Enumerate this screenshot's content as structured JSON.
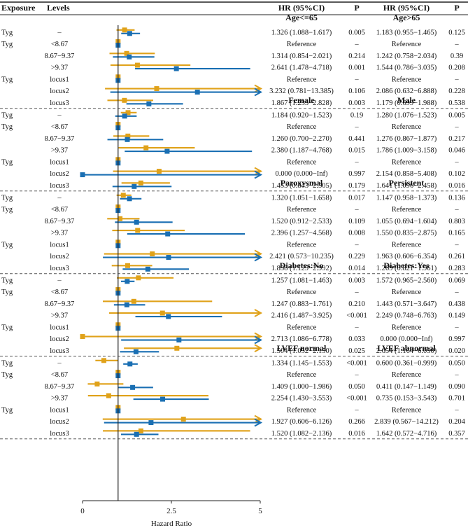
{
  "chart_data": {
    "type": "forest",
    "headers": {
      "exposure": "Exposure",
      "levels": "Levels",
      "hr1": "HR (95%CI)",
      "p1": "P",
      "hr2": "HR (95%CI)",
      "p2": "P"
    },
    "axis": {
      "label": "Hazard Ratio",
      "ticks": [
        0,
        2.5,
        5
      ],
      "tick_labels": [
        "0",
        "2.5",
        "5"
      ],
      "range": [
        0,
        5
      ],
      "reference_line": 1
    },
    "colors": {
      "series1": "#1a6fb3",
      "series2": "#e0a21a",
      "line": "#222222"
    },
    "groups": [
      {
        "subgroup1": "Age<=65",
        "subgroup2": "Age>65",
        "rows": [
          {
            "exposure": "Tyg",
            "level": "–",
            "hr1": "1.326 (1.088−1.617)",
            "p1": "0.005",
            "hr2": "1.183 (0.955−1.465)",
            "p2": "0.125",
            "s1": {
              "est": 1.326,
              "lo": 1.088,
              "hi": 1.617
            },
            "s2": {
              "est": 1.183,
              "lo": 0.955,
              "hi": 1.465
            }
          },
          {
            "exposure": "Tyg",
            "level": "<8.67",
            "hr1": "Reference",
            "p1": "–",
            "hr2": "Reference",
            "p2": "–",
            "s1": {
              "est": 1,
              "lo": 1,
              "hi": 1
            },
            "s2": {
              "est": 1,
              "lo": 1,
              "hi": 1
            }
          },
          {
            "exposure": "",
            "level": "8.67−9.37",
            "hr1": "1.314 (0.854−2.021)",
            "p1": "0.214",
            "hr2": "1.242 (0.758−2.034)",
            "p2": "0.39",
            "s1": {
              "est": 1.314,
              "lo": 0.854,
              "hi": 2.021
            },
            "s2": {
              "est": 1.242,
              "lo": 0.758,
              "hi": 2.034
            }
          },
          {
            "exposure": "",
            "level": ">9.37",
            "hr1": "2.641 (1.478−4.718)",
            "p1": "0.001",
            "hr2": "1.544 (0.786−3.035)",
            "p2": "0.208",
            "s1": {
              "est": 2.641,
              "lo": 1.478,
              "hi": 4.718
            },
            "s2": {
              "est": 1.544,
              "lo": 0.786,
              "hi": 3.035
            }
          },
          {
            "exposure": "Tyg",
            "level": "locus1",
            "hr1": "Reference",
            "p1": "–",
            "hr2": "Reference",
            "p2": "–",
            "s1": {
              "est": 1,
              "lo": 1,
              "hi": 1
            },
            "s2": {
              "est": 1,
              "lo": 1,
              "hi": 1
            }
          },
          {
            "exposure": "",
            "level": "locus2",
            "hr1": "3.232 (0.781−13.385)",
            "p1": "0.106",
            "hr2": "2.086 (0.632−6.888)",
            "p2": "0.228",
            "s1": {
              "est": 3.232,
              "lo": 0.781,
              "hi": 13.385
            },
            "s2": {
              "est": 2.086,
              "lo": 0.632,
              "hi": 6.888
            }
          },
          {
            "exposure": "",
            "level": "locus3",
            "hr1": "1.867 (1.233−2.828)",
            "p1": "0.003",
            "hr2": "1.179 (0.699−1.988)",
            "p2": "0.538",
            "s1": {
              "est": 1.867,
              "lo": 1.233,
              "hi": 2.828
            },
            "s2": {
              "est": 1.179,
              "lo": 0.699,
              "hi": 1.988
            }
          }
        ]
      },
      {
        "subgroup1": "Female",
        "subgroup2": "Male",
        "rows": [
          {
            "exposure": "Tyg",
            "level": "–",
            "hr1": "1.184 (0.920−1.523)",
            "p1": "0.19",
            "hr2": "1.280 (1.076−1.523)",
            "p2": "0.005",
            "s1": {
              "est": 1.184,
              "lo": 0.92,
              "hi": 1.523
            },
            "s2": {
              "est": 1.28,
              "lo": 1.076,
              "hi": 1.523
            }
          },
          {
            "exposure": "Tyg",
            "level": "<8.67",
            "hr1": "Reference",
            "p1": "–",
            "hr2": "Reference",
            "p2": "–",
            "s1": {
              "est": 1,
              "lo": 1,
              "hi": 1
            },
            "s2": {
              "est": 1,
              "lo": 1,
              "hi": 1
            }
          },
          {
            "exposure": "",
            "level": "8.67−9.37",
            "hr1": "1.260 (0.700−2.270)",
            "p1": "0.441",
            "hr2": "1.276 (0.867−1.877)",
            "p2": "0.217",
            "s1": {
              "est": 1.26,
              "lo": 0.7,
              "hi": 2.27
            },
            "s2": {
              "est": 1.276,
              "lo": 0.867,
              "hi": 1.877
            }
          },
          {
            "exposure": "",
            "level": ">9.37",
            "hr1": "2.380 (1.187−4.768)",
            "p1": "0.015",
            "hr2": "1.786 (1.009−3.158)",
            "p2": "0.046",
            "s1": {
              "est": 2.38,
              "lo": 1.187,
              "hi": 4.768
            },
            "s2": {
              "est": 1.786,
              "lo": 1.009,
              "hi": 3.158
            }
          },
          {
            "exposure": "Tyg",
            "level": "locus1",
            "hr1": "Reference",
            "p1": "–",
            "hr2": "Reference",
            "p2": "–",
            "s1": {
              "est": 1,
              "lo": 1,
              "hi": 1
            },
            "s2": {
              "est": 1,
              "lo": 1,
              "hi": 1
            }
          },
          {
            "exposure": "",
            "level": "locus2",
            "hr1": "0.000 (0.000−Inf)",
            "p1": "0.997",
            "hr2": "2.154 (0.858−5.408)",
            "p2": "0.102",
            "s1": {
              "est": 0,
              "lo": 0,
              "hi": null
            },
            "s2": {
              "est": 2.154,
              "lo": 0.858,
              "hi": 5.408
            }
          },
          {
            "exposure": "",
            "level": "locus3",
            "hr1": "1.453 (0.843−2.505)",
            "p1": "0.179",
            "hr2": "1.641 (1.096−2.458)",
            "p2": "0.016",
            "s1": {
              "est": 1.453,
              "lo": 0.843,
              "hi": 2.505
            },
            "s2": {
              "est": 1.641,
              "lo": 1.096,
              "hi": 2.458
            }
          }
        ]
      },
      {
        "subgroup1": "Paroxysmal",
        "subgroup2": "Persistent",
        "rows": [
          {
            "exposure": "Tyg",
            "level": "–",
            "hr1": "1.320 (1.051−1.658)",
            "p1": "0.017",
            "hr2": "1.147 (0.958−1.373)",
            "p2": "0.136",
            "s1": {
              "est": 1.32,
              "lo": 1.051,
              "hi": 1.658
            },
            "s2": {
              "est": 1.147,
              "lo": 0.958,
              "hi": 1.373
            }
          },
          {
            "exposure": "Tyg",
            "level": "<8.67",
            "hr1": "Reference",
            "p1": "–",
            "hr2": "Reference",
            "p2": "–",
            "s1": {
              "est": 1,
              "lo": 1,
              "hi": 1
            },
            "s2": {
              "est": 1,
              "lo": 1,
              "hi": 1
            }
          },
          {
            "exposure": "",
            "level": "8.67−9.37",
            "hr1": "1.520 (0.912−2.533)",
            "p1": "0.109",
            "hr2": "1.055 (0.694−1.604)",
            "p2": "0.803",
            "s1": {
              "est": 1.52,
              "lo": 0.912,
              "hi": 2.533
            },
            "s2": {
              "est": 1.055,
              "lo": 0.694,
              "hi": 1.604
            }
          },
          {
            "exposure": "",
            "level": ">9.37",
            "hr1": "2.396 (1.257−4.568)",
            "p1": "0.008",
            "hr2": "1.550 (0.835−2.875)",
            "p2": "0.165",
            "s1": {
              "est": 2.396,
              "lo": 1.257,
              "hi": 4.568
            },
            "s2": {
              "est": 1.55,
              "lo": 0.835,
              "hi": 2.875
            }
          },
          {
            "exposure": "Tyg",
            "level": "locus1",
            "hr1": "Reference",
            "p1": "–",
            "hr2": "Reference",
            "p2": "–",
            "s1": {
              "est": 1,
              "lo": 1,
              "hi": 1
            },
            "s2": {
              "est": 1,
              "lo": 1,
              "hi": 1
            }
          },
          {
            "exposure": "",
            "level": "locus2",
            "hr1": "2.421 (0.573−10.235)",
            "p1": "0.229",
            "hr2": "1.963 (0.606−6.354)",
            "p2": "0.261",
            "s1": {
              "est": 2.421,
              "lo": 0.573,
              "hi": 10.235
            },
            "s2": {
              "est": 1.963,
              "lo": 0.606,
              "hi": 6.354
            }
          },
          {
            "exposure": "",
            "level": "locus3",
            "hr1": "1.838 (1.129−2.992)",
            "p1": "0.014",
            "hr2": "1.269 (0.821−1.961)",
            "p2": "0.283",
            "s1": {
              "est": 1.838,
              "lo": 1.129,
              "hi": 2.992
            },
            "s2": {
              "est": 1.269,
              "lo": 0.821,
              "hi": 1.961
            }
          }
        ]
      },
      {
        "subgroup1": "Diabetes:No",
        "subgroup2": "Diabetes:Yes",
        "rows": [
          {
            "exposure": "Tyg",
            "level": "–",
            "hr1": "1.257 (1.081−1.463)",
            "p1": "0.003",
            "hr2": "1.572 (0.965−2.560)",
            "p2": "0.069",
            "s1": {
              "est": 1.257,
              "lo": 1.081,
              "hi": 1.463
            },
            "s2": {
              "est": 1.572,
              "lo": 0.965,
              "hi": 2.56
            }
          },
          {
            "exposure": "Tyg",
            "level": "<8.67",
            "hr1": "Reference",
            "p1": "–",
            "hr2": "Reference",
            "p2": "–",
            "s1": {
              "est": 1,
              "lo": 1,
              "hi": 1
            },
            "s2": {
              "est": 1,
              "lo": 1,
              "hi": 1
            }
          },
          {
            "exposure": "",
            "level": "8.67−9.37",
            "hr1": "1.247 (0.883−1.761)",
            "p1": "0.210",
            "hr2": "1.443 (0.571−3.647)",
            "p2": "0.438",
            "s1": {
              "est": 1.247,
              "lo": 0.883,
              "hi": 1.761
            },
            "s2": {
              "est": 1.443,
              "lo": 0.571,
              "hi": 3.647
            }
          },
          {
            "exposure": "",
            "level": ">9.37",
            "hr1": "2.416 (1.487−3.925)",
            "p1": "<0.001",
            "hr2": "2.249 (0.748−6.763)",
            "p2": "0.149",
            "s1": {
              "est": 2.416,
              "lo": 1.487,
              "hi": 3.925
            },
            "s2": {
              "est": 2.249,
              "lo": 0.748,
              "hi": 6.763
            }
          },
          {
            "exposure": "Tyg",
            "level": "locus1",
            "hr1": "Reference",
            "p1": "–",
            "hr2": "Reference",
            "p2": "–",
            "s1": {
              "est": 1,
              "lo": 1,
              "hi": 1
            },
            "s2": {
              "est": 1,
              "lo": 1,
              "hi": 1
            }
          },
          {
            "exposure": "",
            "level": "locus2",
            "hr1": "2.713 (1.086−6.778)",
            "p1": "0.033",
            "hr2": "0.000 (0.000−Inf)",
            "p2": "0.997",
            "s1": {
              "est": 2.713,
              "lo": 1.086,
              "hi": 6.778
            },
            "s2": {
              "est": 0,
              "lo": 0,
              "hi": null
            }
          },
          {
            "exposure": "",
            "level": "locus3",
            "hr1": "1.504 (1.052−2.150)",
            "p1": "0.025",
            "hr2": "2.654 (1.164−6.050)",
            "p2": "0.020",
            "s1": {
              "est": 1.504,
              "lo": 1.052,
              "hi": 2.15
            },
            "s2": {
              "est": 2.654,
              "lo": 1.164,
              "hi": 6.05
            }
          }
        ]
      },
      {
        "subgroup1": "LVEF normal",
        "subgroup2": "LVEF abnormal",
        "rows": [
          {
            "exposure": "Tyg",
            "level": "–",
            "hr1": "1.334 (1.145−1.553)",
            "p1": "<0.001",
            "hr2": "0.600 (0.361−0.999)",
            "p2": "0.050",
            "s1": {
              "est": 1.334,
              "lo": 1.145,
              "hi": 1.553
            },
            "s2": {
              "est": 0.6,
              "lo": 0.361,
              "hi": 0.999
            }
          },
          {
            "exposure": "Tyg",
            "level": "<8.67",
            "hr1": "Reference",
            "p1": "–",
            "hr2": "Reference",
            "p2": "–",
            "s1": {
              "est": 1,
              "lo": 1,
              "hi": 1
            },
            "s2": {
              "est": 1,
              "lo": 1,
              "hi": 1
            }
          },
          {
            "exposure": "",
            "level": "8.67−9.37",
            "hr1": "1.409 (1.000−1.986)",
            "p1": "0.050",
            "hr2": "0.411 (0.147−1.149)",
            "p2": "0.090",
            "s1": {
              "est": 1.409,
              "lo": 1.0,
              "hi": 1.986
            },
            "s2": {
              "est": 0.411,
              "lo": 0.147,
              "hi": 1.149
            }
          },
          {
            "exposure": "",
            "level": ">9.37",
            "hr1": "2.254 (1.430−3.553)",
            "p1": "<0.001",
            "hr2": "0.735 (0.153−3.543)",
            "p2": "0.701",
            "s1": {
              "est": 2.254,
              "lo": 1.43,
              "hi": 3.553
            },
            "s2": {
              "est": 0.735,
              "lo": 0.153,
              "hi": 3.543
            }
          },
          {
            "exposure": "Tyg",
            "level": "locus1",
            "hr1": "Reference",
            "p1": "–",
            "hr2": "Reference",
            "p2": "–",
            "s1": {
              "est": 1,
              "lo": 1,
              "hi": 1
            },
            "s2": {
              "est": 1,
              "lo": 1,
              "hi": 1
            }
          },
          {
            "exposure": "",
            "level": "locus2",
            "hr1": "1.927 (0.606−6.126)",
            "p1": "0.266",
            "hr2": "2.839 (0.567−14.212)",
            "p2": "0.204",
            "s1": {
              "est": 1.927,
              "lo": 0.606,
              "hi": 6.126
            },
            "s2": {
              "est": 2.839,
              "lo": 0.567,
              "hi": 14.212
            }
          },
          {
            "exposure": "",
            "level": "locus3",
            "hr1": "1.520 (1.082−2.136)",
            "p1": "0.016",
            "hr2": "1.642 (0.572−4.716)",
            "p2": "0.357",
            "s1": {
              "est": 1.52,
              "lo": 1.082,
              "hi": 2.136
            },
            "s2": {
              "est": 1.642,
              "lo": 0.572,
              "hi": 4.716
            }
          }
        ]
      }
    ]
  }
}
